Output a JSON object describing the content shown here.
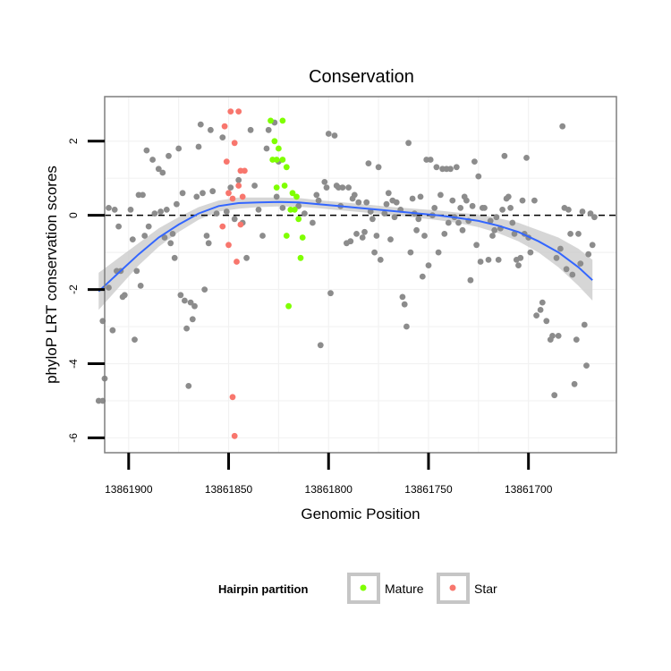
{
  "chart_data": {
    "type": "scatter",
    "title": "Conservation",
    "xlabel": "Genomic Position",
    "ylabel": "phyloP LRT conservation scores",
    "x_reversed": true,
    "xlim": [
      13861912,
      13861656
    ],
    "ylim": [
      -6.4,
      3.2
    ],
    "x_ticks": [
      13861900,
      13861850,
      13861800,
      13861750,
      13861700
    ],
    "x_tick_labels": [
      "13861900",
      "13861850",
      "13861800",
      "13861750",
      "13861700"
    ],
    "y_ticks": [
      -6,
      -4,
      -2,
      0,
      2
    ],
    "y_tick_labels": [
      "-6",
      "-4",
      "-2",
      "0",
      "2"
    ],
    "reference_line": {
      "y": 0,
      "style": "dashed",
      "color": "#000000"
    },
    "grid": true,
    "legend": {
      "title": "Hairpin partition",
      "position": "bottom",
      "entries": [
        {
          "label": "Mature",
          "color": "#7fff00"
        },
        {
          "label": "Star",
          "color": "#f8766d"
        }
      ]
    },
    "colors": {
      "other": "#8c8c8c",
      "Mature": "#7fff00",
      "Star": "#f8766d",
      "smooth": "#3366ff",
      "ribbon": "#cccccc"
    },
    "series": [
      {
        "group": "other",
        "points": [
          [
            13861915,
            -5.0
          ],
          [
            13861913,
            -5.0
          ],
          [
            13861912,
            -4.4
          ],
          [
            13861913,
            -2.85
          ],
          [
            13861910,
            0.2
          ],
          [
            13861907,
            0.15
          ],
          [
            13861910,
            -1.95
          ],
          [
            13861908,
            -3.1
          ],
          [
            13861906,
            -1.5
          ],
          [
            13861905,
            -0.3
          ],
          [
            13861904,
            -1.5
          ],
          [
            13861903,
            -2.2
          ],
          [
            13861902,
            -2.15
          ],
          [
            13861899,
            0.15
          ],
          [
            13861898,
            -0.65
          ],
          [
            13861897,
            -3.35
          ],
          [
            13861896,
            -1.5
          ],
          [
            13861895,
            0.55
          ],
          [
            13861894,
            -1.9
          ],
          [
            13861893,
            0.55
          ],
          [
            13861892,
            -0.55
          ],
          [
            13861891,
            1.75
          ],
          [
            13861890,
            -0.3
          ],
          [
            13861888,
            1.5
          ],
          [
            13861887,
            0.05
          ],
          [
            13861885,
            1.25
          ],
          [
            13861884,
            0.1
          ],
          [
            13861883,
            1.15
          ],
          [
            13861882,
            -0.6
          ],
          [
            13861881,
            0.15
          ],
          [
            13861880,
            1.6
          ],
          [
            13861879,
            -0.75
          ],
          [
            13861878,
            -0.5
          ],
          [
            13861877,
            -1.15
          ],
          [
            13861876,
            0.3
          ],
          [
            13861875,
            1.8
          ],
          [
            13861874,
            -2.15
          ],
          [
            13861873,
            0.6
          ],
          [
            13861872,
            -2.3
          ],
          [
            13861871,
            -3.05
          ],
          [
            13861870,
            -4.6
          ],
          [
            13861869,
            -2.35
          ],
          [
            13861868,
            -2.8
          ],
          [
            13861867,
            -2.45
          ],
          [
            13861866,
            0.5
          ],
          [
            13861865,
            1.85
          ],
          [
            13861864,
            2.45
          ],
          [
            13861863,
            0.6
          ],
          [
            13861862,
            -2.0
          ],
          [
            13861861,
            -0.55
          ],
          [
            13861860,
            -0.75
          ],
          [
            13861859,
            2.3
          ],
          [
            13861858,
            0.65
          ],
          [
            13861856,
            0.05
          ],
          [
            13861853,
            2.1
          ],
          [
            13861851,
            0.1
          ],
          [
            13861849,
            0.75
          ],
          [
            13861847,
            -0.1
          ],
          [
            13861845,
            0.95
          ],
          [
            13861843,
            -0.2
          ],
          [
            13861841,
            -1.15
          ],
          [
            13861839,
            2.3
          ],
          [
            13861837,
            0.8
          ],
          [
            13861835,
            0.15
          ],
          [
            13861833,
            -0.55
          ],
          [
            13861831,
            1.8
          ],
          [
            13861830,
            2.3
          ],
          [
            13861827,
            2.5
          ],
          [
            13861826,
            0.5
          ],
          [
            13861825,
            1.45
          ],
          [
            13861823,
            0.2
          ],
          [
            13861815,
            0.25
          ],
          [
            13861812,
            0.05
          ],
          [
            13861808,
            -0.2
          ],
          [
            13861806,
            0.55
          ],
          [
            13861805,
            0.4
          ],
          [
            13861804,
            -3.5
          ],
          [
            13861802,
            0.9
          ],
          [
            13861801,
            0.75
          ],
          [
            13861800,
            2.2
          ],
          [
            13861799,
            -2.1
          ],
          [
            13861797,
            2.15
          ],
          [
            13861796,
            0.8
          ],
          [
            13861795,
            0.75
          ],
          [
            13861794,
            0.25
          ],
          [
            13861793,
            0.75
          ],
          [
            13861791,
            -0.75
          ],
          [
            13861790,
            0.75
          ],
          [
            13861789,
            -0.7
          ],
          [
            13861788,
            0.45
          ],
          [
            13861787,
            0.55
          ],
          [
            13861786,
            -0.5
          ],
          [
            13861785,
            0.35
          ],
          [
            13861783,
            -0.6
          ],
          [
            13861782,
            -0.45
          ],
          [
            13861781,
            0.35
          ],
          [
            13861780,
            1.4
          ],
          [
            13861779,
            0.1
          ],
          [
            13861778,
            -0.1
          ],
          [
            13861777,
            -1.0
          ],
          [
            13861776,
            -0.55
          ],
          [
            13861775,
            1.3
          ],
          [
            13861774,
            -1.2
          ],
          [
            13861772,
            0.05
          ],
          [
            13861771,
            0.3
          ],
          [
            13861770,
            0.6
          ],
          [
            13861769,
            -0.65
          ],
          [
            13861768,
            0.4
          ],
          [
            13861767,
            -0.05
          ],
          [
            13861766,
            0.35
          ],
          [
            13861764,
            0.15
          ],
          [
            13861763,
            -2.2
          ],
          [
            13861762,
            -2.4
          ],
          [
            13861761,
            -3.0
          ],
          [
            13861760,
            1.95
          ],
          [
            13861759,
            -1.0
          ],
          [
            13861758,
            0.45
          ],
          [
            13861757,
            0.05
          ],
          [
            13861756,
            -0.4
          ],
          [
            13861755,
            -0.1
          ],
          [
            13861754,
            0.5
          ],
          [
            13861753,
            -1.65
          ],
          [
            13861752,
            -0.55
          ],
          [
            13861751,
            1.5
          ],
          [
            13861750,
            -1.35
          ],
          [
            13861749,
            1.5
          ],
          [
            13861748,
            0.0
          ],
          [
            13861747,
            0.2
          ],
          [
            13861746,
            1.3
          ],
          [
            13861745,
            -1.0
          ],
          [
            13861744,
            0.55
          ],
          [
            13861743,
            1.25
          ],
          [
            13861742,
            -0.5
          ],
          [
            13861741,
            1.25
          ],
          [
            13861740,
            -0.2
          ],
          [
            13861739,
            1.25
          ],
          [
            13861738,
            0.4
          ],
          [
            13861737,
            -0.05
          ],
          [
            13861736,
            1.3
          ],
          [
            13861735,
            -0.2
          ],
          [
            13861734,
            0.2
          ],
          [
            13861733,
            -0.4
          ],
          [
            13861732,
            0.5
          ],
          [
            13861731,
            0.4
          ],
          [
            13861730,
            -0.15
          ],
          [
            13861729,
            -1.75
          ],
          [
            13861728,
            0.25
          ],
          [
            13861727,
            1.45
          ],
          [
            13861726,
            -0.8
          ],
          [
            13861725,
            1.05
          ],
          [
            13861724,
            -1.25
          ],
          [
            13861723,
            0.2
          ],
          [
            13861722,
            0.2
          ],
          [
            13861720,
            -1.2
          ],
          [
            13861719,
            -0.15
          ],
          [
            13861718,
            -0.55
          ],
          [
            13861717,
            -0.4
          ],
          [
            13861716,
            -0.05
          ],
          [
            13861715,
            -1.2
          ],
          [
            13861714,
            -0.35
          ],
          [
            13861713,
            0.15
          ],
          [
            13861712,
            1.6
          ],
          [
            13861711,
            0.45
          ],
          [
            13861710,
            0.5
          ],
          [
            13861709,
            0.2
          ],
          [
            13861708,
            -0.2
          ],
          [
            13861707,
            -0.5
          ],
          [
            13861706,
            -1.2
          ],
          [
            13861705,
            -1.35
          ],
          [
            13861704,
            -1.15
          ],
          [
            13861703,
            0.4
          ],
          [
            13861702,
            -0.5
          ],
          [
            13861701,
            1.55
          ],
          [
            13861700,
            -0.6
          ],
          [
            13861699,
            -1.0
          ],
          [
            13861697,
            0.4
          ],
          [
            13861696,
            -2.7
          ],
          [
            13861694,
            -2.55
          ],
          [
            13861693,
            -2.35
          ],
          [
            13861691,
            -2.85
          ],
          [
            13861689,
            -3.35
          ],
          [
            13861688,
            -3.25
          ],
          [
            13861687,
            -4.85
          ],
          [
            13861686,
            -1.15
          ],
          [
            13861685,
            -3.25
          ],
          [
            13861684,
            -0.9
          ],
          [
            13861683,
            2.4
          ],
          [
            13861682,
            0.2
          ],
          [
            13861681,
            -1.45
          ],
          [
            13861680,
            0.15
          ],
          [
            13861679,
            -0.5
          ],
          [
            13861678,
            -1.6
          ],
          [
            13861677,
            -4.55
          ],
          [
            13861676,
            -3.35
          ],
          [
            13861675,
            -0.5
          ],
          [
            13861674,
            -1.3
          ],
          [
            13861673,
            0.1
          ],
          [
            13861672,
            -2.95
          ],
          [
            13861671,
            -4.05
          ],
          [
            13861670,
            -1.05
          ],
          [
            13861669,
            0.05
          ],
          [
            13861668,
            -0.8
          ],
          [
            13861667,
            -0.05
          ]
        ]
      },
      {
        "group": "Star",
        "points": [
          [
            13861849,
            2.8
          ],
          [
            13861845,
            2.8
          ],
          [
            13861852,
            2.4
          ],
          [
            13861847,
            1.95
          ],
          [
            13861851,
            1.45
          ],
          [
            13861844,
            1.2
          ],
          [
            13861842,
            1.2
          ],
          [
            13861845,
            0.8
          ],
          [
            13861850,
            0.6
          ],
          [
            13861843,
            0.5
          ],
          [
            13861848,
            0.45
          ],
          [
            13861853,
            -0.3
          ],
          [
            13861844,
            -0.25
          ],
          [
            13861850,
            -0.8
          ],
          [
            13861846,
            -1.25
          ],
          [
            13861848,
            -4.9
          ],
          [
            13861847,
            -5.95
          ]
        ]
      },
      {
        "group": "Mature",
        "points": [
          [
            13861829,
            2.55
          ],
          [
            13861823,
            2.55
          ],
          [
            13861827,
            2.0
          ],
          [
            13861825,
            1.8
          ],
          [
            13861828,
            1.5
          ],
          [
            13861826,
            1.5
          ],
          [
            13861823,
            1.5
          ],
          [
            13861821,
            1.3
          ],
          [
            13861826,
            0.75
          ],
          [
            13861822,
            0.8
          ],
          [
            13861818,
            0.6
          ],
          [
            13861819,
            0.15
          ],
          [
            13861817,
            0.15
          ],
          [
            13861816,
            0.5
          ],
          [
            13861815,
            -0.1
          ],
          [
            13861821,
            -0.55
          ],
          [
            13861813,
            -0.6
          ],
          [
            13861814,
            -1.15
          ],
          [
            13861820,
            -2.45
          ]
        ]
      }
    ],
    "smooth": {
      "x": [
        13861915,
        13861905,
        13861895,
        13861885,
        13861875,
        13861865,
        13861855,
        13861845,
        13861835,
        13861825,
        13861815,
        13861805,
        13861795,
        13861785,
        13861775,
        13861765,
        13861755,
        13861745,
        13861735,
        13861725,
        13861715,
        13861705,
        13861695,
        13861685,
        13861675,
        13861668
      ],
      "y": [
        -2.05,
        -1.55,
        -1.05,
        -0.6,
        -0.25,
        0.05,
        0.25,
        0.33,
        0.35,
        0.36,
        0.35,
        0.3,
        0.25,
        0.2,
        0.15,
        0.1,
        0.05,
        0.0,
        -0.07,
        -0.15,
        -0.28,
        -0.45,
        -0.7,
        -1.0,
        -1.4,
        -1.75
      ],
      "lower": [
        -2.55,
        -1.95,
        -1.35,
        -0.85,
        -0.45,
        -0.12,
        0.1,
        0.18,
        0.22,
        0.24,
        0.23,
        0.19,
        0.14,
        0.09,
        0.04,
        -0.01,
        -0.07,
        -0.13,
        -0.21,
        -0.32,
        -0.48,
        -0.7,
        -1.0,
        -1.4,
        -1.9,
        -2.3
      ],
      "upper": [
        -1.55,
        -1.15,
        -0.75,
        -0.35,
        -0.05,
        0.22,
        0.4,
        0.48,
        0.48,
        0.48,
        0.47,
        0.41,
        0.36,
        0.31,
        0.26,
        0.21,
        0.17,
        0.13,
        0.07,
        0.02,
        -0.08,
        -0.2,
        -0.4,
        -0.6,
        -0.9,
        -1.2
      ]
    }
  }
}
